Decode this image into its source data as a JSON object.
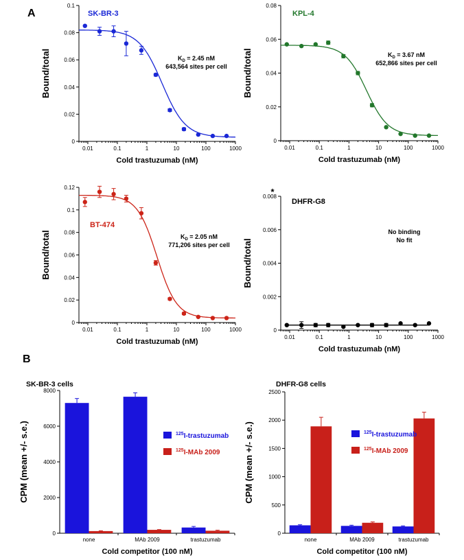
{
  "panel_labels": {
    "a": "A",
    "b": "B"
  },
  "chart_data": [
    {
      "type": "scatter",
      "title": "SK-BR-3",
      "color": "#1a28d6",
      "xlabel": "Cold trastuzumab (nM)",
      "ylabel": "Bound/total",
      "xscale": "log",
      "xlim": [
        0.005,
        1000
      ],
      "ylim": [
        0,
        0.1
      ],
      "xticks": [
        "0.01",
        "0.1",
        "1",
        "10",
        "100",
        "1000"
      ],
      "yticks": [
        "0",
        "0.02",
        "0.04",
        "0.06",
        "0.08",
        "0.1"
      ],
      "x": [
        0.008,
        0.025,
        0.075,
        0.2,
        0.65,
        2,
        6,
        18,
        55,
        170,
        500
      ],
      "y": [
        0.085,
        0.081,
        0.081,
        0.072,
        0.067,
        0.049,
        0.023,
        0.009,
        0.005,
        0.004,
        0.004
      ],
      "err": [
        0,
        0.003,
        0.004,
        0.009,
        0.003,
        0.001,
        0.001,
        0.001,
        0,
        0,
        0
      ],
      "fit": {
        "top": 0.082,
        "bottom": 0.003,
        "ec50": 3.3,
        "hill": 1.1
      },
      "annotation": {
        "kd": "K",
        "kd_sub": "D",
        "kd_value": " = 2.45 nM",
        "sites": "643,564 sites per cell"
      }
    },
    {
      "type": "scatter",
      "title": "KPL-4",
      "color": "#22772b",
      "xlabel": "Cold trastuzumab (nM)",
      "ylabel": "Bound/total",
      "xscale": "log",
      "xlim": [
        0.005,
        1000
      ],
      "ylim": [
        0,
        0.08
      ],
      "xticks": [
        "0.01",
        "0.1",
        "1",
        "10",
        "100",
        "1000"
      ],
      "yticks": [
        "0",
        "0.02",
        "0.04",
        "0.06",
        "0.08"
      ],
      "x": [
        0.008,
        0.025,
        0.075,
        0.2,
        0.65,
        2,
        6,
        18,
        55,
        170,
        500
      ],
      "y": [
        0.057,
        0.056,
        0.057,
        0.058,
        0.05,
        0.04,
        0.021,
        0.008,
        0.004,
        0.003,
        0.003
      ],
      "err": [
        0,
        0,
        0,
        0.001,
        0.001,
        0.001,
        0.001,
        0,
        0,
        0,
        0
      ],
      "fit": {
        "top": 0.0565,
        "bottom": 0.003,
        "ec50": 3.9,
        "hill": 1.2
      },
      "annotation": {
        "kd": "K",
        "kd_sub": "D",
        "kd_value": " = 3.67 nM",
        "sites": "652,866 sites per cell"
      }
    },
    {
      "type": "scatter",
      "title": "BT-474",
      "color": "#cc2418",
      "xlabel": "Cold trastuzumab (nM)",
      "ylabel": "Bound/total",
      "xscale": "log",
      "xlim": [
        0.005,
        1000
      ],
      "ylim": [
        0,
        0.12
      ],
      "xticks": [
        "0.01",
        "0.1",
        "1",
        "10",
        "100",
        "1000"
      ],
      "yticks": [
        "0",
        "0.02",
        "0.04",
        "0.06",
        "0.08",
        "0.1",
        "0.12"
      ],
      "x": [
        0.008,
        0.025,
        0.075,
        0.2,
        0.65,
        2,
        6,
        18,
        55,
        170,
        500
      ],
      "y": [
        0.107,
        0.116,
        0.114,
        0.11,
        0.097,
        0.053,
        0.021,
        0.008,
        0.005,
        0.004,
        0.004
      ],
      "err": [
        0.004,
        0.005,
        0.005,
        0.003,
        0.005,
        0.002,
        0.001,
        0.001,
        0,
        0,
        0
      ],
      "fit": {
        "top": 0.113,
        "bottom": 0.004,
        "ec50": 2.2,
        "hill": 1.3
      },
      "annotation": {
        "kd": "K",
        "kd_sub": "D",
        "kd_value": " = 2.05 nM",
        "sites": "771,206 sites per cell"
      }
    },
    {
      "type": "scatter",
      "title": "DHFR-G8",
      "color": "#000000",
      "star": "*",
      "xlabel": "Cold trastuzumab (nM)",
      "ylabel": "Bound/total",
      "xscale": "log",
      "xlim": [
        0.005,
        1000
      ],
      "ylim": [
        0,
        0.008
      ],
      "xticks": [
        "0.01",
        "0.1",
        "1",
        "10",
        "100",
        "1000"
      ],
      "yticks": [
        "0",
        "0.002",
        "0.004",
        "0.006",
        "0.008"
      ],
      "x": [
        0.008,
        0.025,
        0.075,
        0.2,
        0.65,
        2,
        6,
        18,
        55,
        170,
        500
      ],
      "y": [
        0.0003,
        0.0003,
        0.0003,
        0.0003,
        0.0002,
        0.0003,
        0.0003,
        0.0003,
        0.0004,
        0.0003,
        0.0004
      ],
      "err": [
        0,
        0.0002,
        0.0001,
        0.0001,
        0,
        0,
        0.0001,
        0.0001,
        0,
        0,
        0
      ],
      "flat_line": 0.0003,
      "annotation": {
        "line1": "No binding",
        "line2": "No fit"
      }
    },
    {
      "type": "bar",
      "title": "SK-BR-3 cells",
      "xlabel": "Cold competitor (100 nM)",
      "ylabel": "CPM (mean +/- s.e.)",
      "ylim": [
        0,
        8000
      ],
      "yticks": [
        "0",
        "2000",
        "4000",
        "6000",
        "8000"
      ],
      "categories": [
        "none",
        "MAb 2009",
        "trastuzumab"
      ],
      "series": [
        {
          "name": "I-trastuzumab",
          "prefix": "125",
          "color": "#1a14dc",
          "values": [
            7300,
            7650,
            320
          ],
          "err": [
            250,
            220,
            60
          ]
        },
        {
          "name": "I-MAb 2009",
          "prefix": "125",
          "color": "#c8201a",
          "values": [
            120,
            190,
            140
          ],
          "err": [
            20,
            15,
            30
          ]
        }
      ],
      "legend": "right"
    },
    {
      "type": "bar",
      "title": "DHFR-G8 cells",
      "xlabel": "Cold competitor (100 nM)",
      "ylabel": "CPM (mean +/- s.e.)",
      "ylim": [
        0,
        2500
      ],
      "yticks": [
        "0",
        "500",
        "1000",
        "1500",
        "2000",
        "2500"
      ],
      "categories": [
        "none",
        "MAb 2009",
        "trastuzumab"
      ],
      "series": [
        {
          "name": "I-trastuzumab",
          "prefix": "125",
          "color": "#1a14dc",
          "values": [
            140,
            130,
            120
          ],
          "err": [
            10,
            12,
            10
          ]
        },
        {
          "name": "I-MAb 2009",
          "prefix": "125",
          "color": "#c8201a",
          "values": [
            1890,
            185,
            2030
          ],
          "err": [
            160,
            15,
            110
          ]
        }
      ],
      "legend": "right"
    }
  ]
}
